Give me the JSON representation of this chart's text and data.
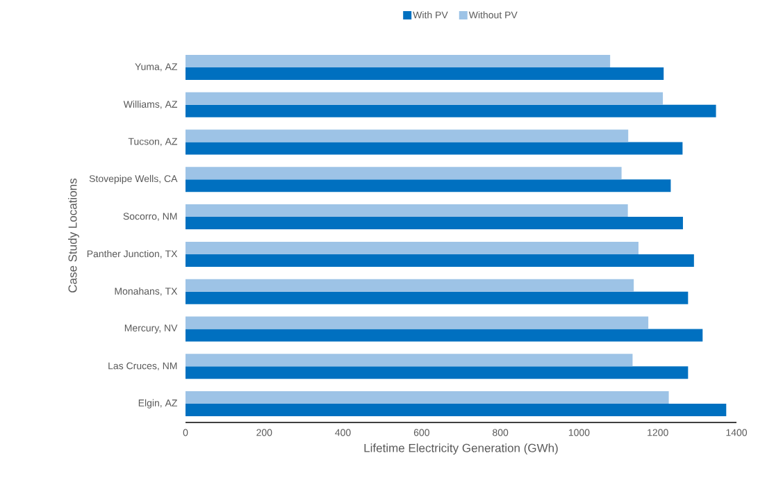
{
  "chart_data": {
    "type": "bar",
    "orientation": "horizontal",
    "xlabel": "Lifetime Electricity Generation (GWh)",
    "ylabel": "Case Study Locations",
    "categories": [
      "Yuma, AZ",
      "Williams, AZ",
      "Tucson, AZ",
      "Stovepipe Wells, CA",
      "Socorro, NM",
      "Panther Junction, TX",
      "Monahans, TX",
      "Mercury, NV",
      "Las Cruces, NM",
      "Elgin, AZ"
    ],
    "series": [
      {
        "name": "With PV",
        "color": "#0070c0",
        "values": [
          1215,
          1348,
          1263,
          1233,
          1264,
          1292,
          1277,
          1314,
          1277,
          1374
        ]
      },
      {
        "name": "Without PV",
        "color": "#9dc3e6",
        "values": [
          1079,
          1213,
          1125,
          1108,
          1124,
          1151,
          1139,
          1176,
          1136,
          1228
        ]
      }
    ],
    "xlim": [
      0,
      1400
    ],
    "xticks": [
      0,
      200,
      400,
      600,
      800,
      1000,
      1200,
      1400
    ],
    "legend": "top",
    "grid": false
  }
}
